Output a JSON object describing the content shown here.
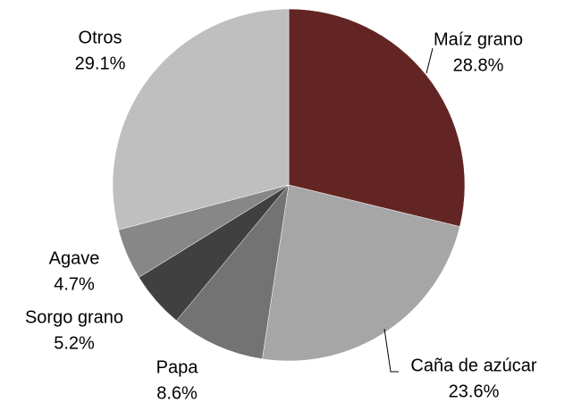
{
  "chart_data": {
    "type": "pie",
    "categories": [
      "Maíz grano",
      "Caña de azúcar",
      "Papa",
      "Sorgo grano",
      "Agave",
      "Otros"
    ],
    "values": [
      28.8,
      23.6,
      8.6,
      5.2,
      4.7,
      29.1
    ],
    "value_labels": [
      "28.8%",
      "23.6%",
      "8.6%",
      "5.2%",
      "4.7%",
      "29.1%"
    ],
    "colors": [
      "#632523",
      "#a6a6a6",
      "#737373",
      "#404040",
      "#878787",
      "#bfbfbf"
    ]
  }
}
